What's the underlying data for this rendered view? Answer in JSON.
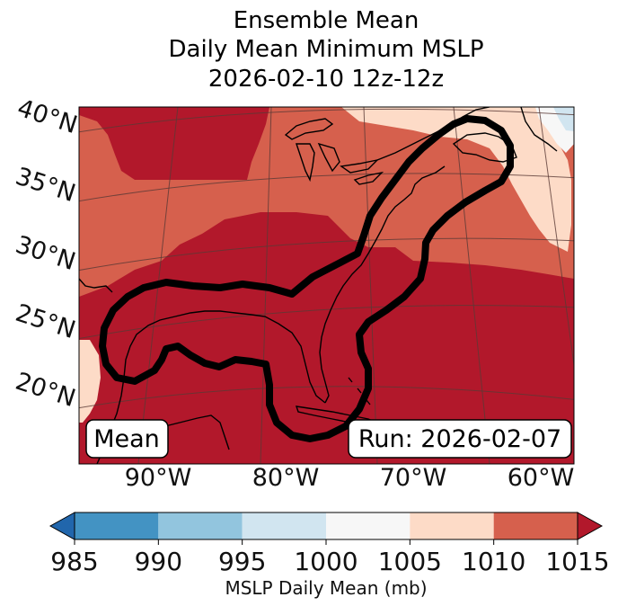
{
  "title": {
    "line1": "Ensemble Mean",
    "line2": "Daily Mean Minimum MSLP",
    "line3": "2026-02-10 12z-12z"
  },
  "map": {
    "lat_labels": [
      "40°N",
      "35°N",
      "30°N",
      "25°N",
      "20°N"
    ],
    "lon_labels": [
      "90°W",
      "80°W",
      "70°W",
      "60°W"
    ],
    "mean_label": "Mean",
    "run_label": "Run: 2026-02-07",
    "field_colors": {
      "1010-1015": "#d6604d",
      "above-1015": "#b2182b",
      "1005-1010": "#fddbc7",
      "1000-1005": "#f7f7f7",
      "995-1000": "#d1e5f0"
    }
  },
  "colorbar": {
    "label": "MSLP Daily Mean (mb)",
    "ticks": [
      "985",
      "990",
      "995",
      "1000",
      "1005",
      "1010",
      "1015"
    ],
    "bins": [
      {
        "from": 985,
        "to": 990,
        "color": "#4393c3"
      },
      {
        "from": 990,
        "to": 995,
        "color": "#92c5de"
      },
      {
        "from": 995,
        "to": 1000,
        "color": "#d1e5f0"
      },
      {
        "from": 1000,
        "to": 1005,
        "color": "#f7f7f7"
      },
      {
        "from": 1005,
        "to": 1010,
        "color": "#fddbc7"
      },
      {
        "from": 1010,
        "to": 1015,
        "color": "#d6604d"
      }
    ],
    "under_color": "#2166ac",
    "over_color": "#b2182b"
  }
}
